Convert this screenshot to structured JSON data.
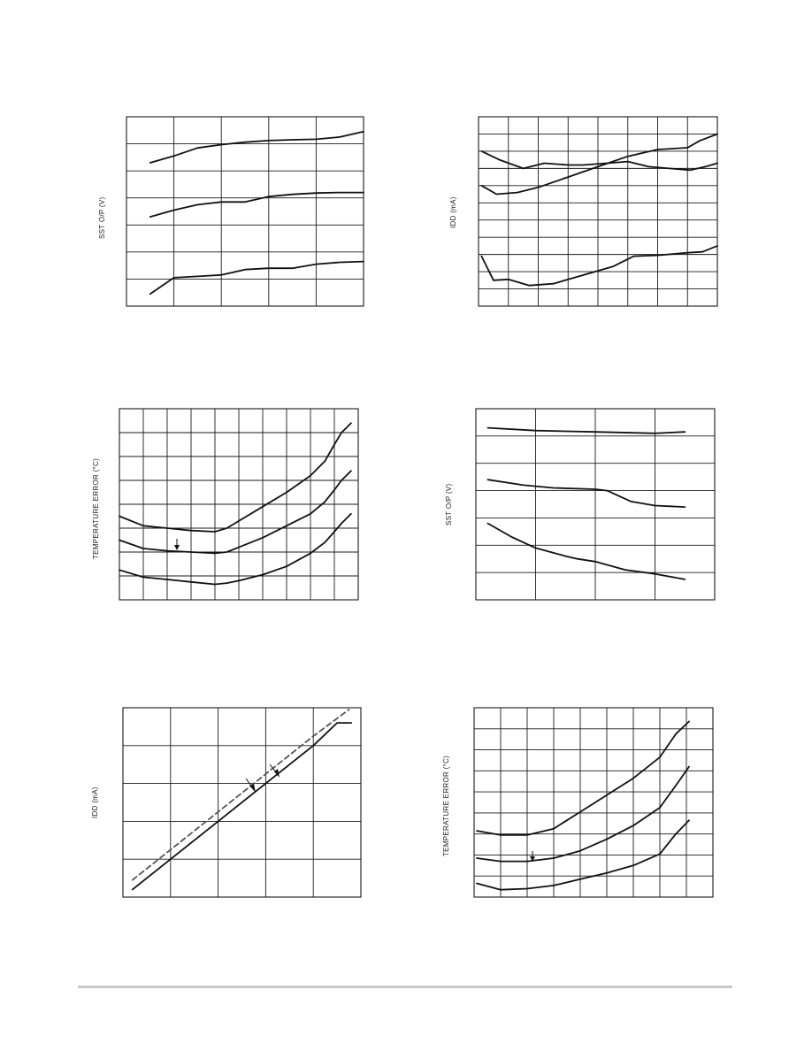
{
  "colors": {
    "ink": "#1a1a1a",
    "dashed_series": "#555555",
    "footer_rule": "#c8c8c8"
  },
  "chart_data": [
    {
      "id": "chart1",
      "type": "line",
      "ylabel": "SST O/P (V)",
      "grid": {
        "cols": 5,
        "rows": 7
      },
      "xlim": [
        0,
        5
      ],
      "ylim": [
        0,
        7
      ],
      "series": [
        {
          "x": [
            0.5,
            1,
            1.5,
            2,
            2.5,
            3,
            3.5,
            4,
            4.5,
            5
          ],
          "y": [
            5.3,
            5.55,
            5.85,
            5.97,
            6.06,
            6.12,
            6.15,
            6.17,
            6.25,
            6.45
          ],
          "style": "solid"
        },
        {
          "x": [
            0.5,
            1,
            1.5,
            2,
            2.5,
            3,
            3.5,
            4,
            4.5,
            5
          ],
          "y": [
            3.3,
            3.55,
            3.75,
            3.85,
            3.85,
            4.05,
            4.13,
            4.18,
            4.2,
            4.2
          ],
          "style": "solid"
        },
        {
          "x": [
            0.5,
            1,
            1.5,
            2,
            2.5,
            3,
            3.5,
            4,
            4.5,
            5
          ],
          "y": [
            0.45,
            1.05,
            1.1,
            1.15,
            1.35,
            1.4,
            1.4,
            1.55,
            1.62,
            1.65
          ],
          "style": "solid"
        }
      ]
    },
    {
      "id": "chart2",
      "type": "line",
      "ylabel": "IDD (mA)",
      "grid": {
        "cols": 8,
        "rows": 11
      },
      "xlim": [
        0,
        8
      ],
      "ylim": [
        0,
        11
      ],
      "series": [
        {
          "x": [
            0.1,
            0.7,
            1.5,
            2.2,
            3,
            3.5,
            4.3,
            5,
            5.7,
            6.4,
            7.1,
            7.6,
            8
          ],
          "y": [
            9,
            8.5,
            8.0,
            8.3,
            8.2,
            8.2,
            8.3,
            8.4,
            8.1,
            8.0,
            7.9,
            8.1,
            8.3
          ],
          "style": "solid"
        },
        {
          "x": [
            0.1,
            0.6,
            1.3,
            2.0,
            3.0,
            4.0,
            5.0,
            6.0,
            7.0,
            7.4,
            8.0
          ],
          "y": [
            7.0,
            6.5,
            6.6,
            6.9,
            7.5,
            8.1,
            8.7,
            9.1,
            9.2,
            9.6,
            10.0
          ],
          "style": "solid"
        },
        {
          "x": [
            0.1,
            0.5,
            1.0,
            1.7,
            2.5,
            3.5,
            4.5,
            5.2,
            6.0,
            7.0,
            7.5,
            8.0
          ],
          "y": [
            2.9,
            1.5,
            1.55,
            1.2,
            1.3,
            1.8,
            2.3,
            2.9,
            2.95,
            3.1,
            3.15,
            3.5
          ],
          "style": "solid"
        }
      ]
    },
    {
      "id": "chart3",
      "type": "line",
      "ylabel": "TEMPERATURE ERROR (°C)",
      "grid": {
        "cols": 10,
        "rows": 8
      },
      "xlim": [
        0,
        10
      ],
      "ylim": [
        0,
        8
      ],
      "series": [
        {
          "x": [
            0,
            1,
            2,
            3,
            4,
            4.5,
            5,
            6,
            7,
            8,
            8.6,
            9,
            9.3,
            9.7
          ],
          "y": [
            3.5,
            3.1,
            3.0,
            2.9,
            2.85,
            3.0,
            3.3,
            3.9,
            4.5,
            5.2,
            5.8,
            6.5,
            7.0,
            7.4
          ],
          "style": "solid"
        },
        {
          "x": [
            0,
            1,
            2,
            3,
            4,
            4.5,
            5,
            6,
            7,
            8,
            8.6,
            9,
            9.3,
            9.7
          ],
          "y": [
            2.5,
            2.15,
            2.05,
            2.0,
            1.95,
            2.0,
            2.2,
            2.6,
            3.1,
            3.6,
            4.1,
            4.6,
            5.0,
            5.4
          ],
          "style": "solid"
        },
        {
          "x": [
            0,
            1,
            2,
            3,
            4,
            4.5,
            5,
            6,
            7,
            8,
            8.6,
            9,
            9.3,
            9.7
          ],
          "y": [
            1.25,
            0.95,
            0.85,
            0.75,
            0.65,
            0.7,
            0.8,
            1.05,
            1.4,
            1.95,
            2.4,
            2.85,
            3.2,
            3.6
          ],
          "style": "solid"
        }
      ]
    },
    {
      "id": "chart4",
      "type": "line",
      "ylabel": "SST O/P (V)",
      "grid": {
        "cols": 4,
        "rows": 7
      },
      "xlim": [
        0,
        4
      ],
      "ylim": [
        0,
        7
      ],
      "series": [
        {
          "x": [
            0.2,
            1,
            2,
            3,
            3.5
          ],
          "y": [
            6.3,
            6.2,
            6.15,
            6.1,
            6.15
          ],
          "style": "solid"
        },
        {
          "x": [
            0.2,
            0.8,
            1.3,
            2.0,
            2.2,
            2.6,
            3.0,
            3.5
          ],
          "y": [
            4.4,
            4.2,
            4.1,
            4.05,
            4.0,
            3.6,
            3.45,
            3.4
          ],
          "style": "solid"
        },
        {
          "x": [
            0.2,
            0.6,
            1.0,
            1.5,
            1.7,
            2.0,
            2.5,
            3.0,
            3.5
          ],
          "y": [
            2.8,
            2.3,
            1.9,
            1.6,
            1.5,
            1.4,
            1.1,
            0.95,
            0.75
          ],
          "style": "solid"
        }
      ]
    },
    {
      "id": "chart5",
      "type": "line",
      "ylabel": "IDD (mA)",
      "grid": {
        "cols": 5,
        "rows": 5
      },
      "xlim": [
        0,
        5
      ],
      "ylim": [
        0,
        5
      ],
      "series": [
        {
          "x": [
            0.2,
            1,
            2,
            3,
            4,
            4.5,
            4.8
          ],
          "y": [
            0.2,
            1.0,
            2.0,
            3.0,
            4.0,
            4.6,
            4.6
          ],
          "style": "solid"
        },
        {
          "x": [
            0.2,
            1,
            2,
            3,
            4,
            4.75
          ],
          "y": [
            0.45,
            1.25,
            2.25,
            3.25,
            4.25,
            4.95
          ],
          "style": "dashed"
        }
      ],
      "annotations": [
        {
          "kind": "arrow"
        },
        {
          "kind": "arrow"
        }
      ]
    },
    {
      "id": "chart6",
      "type": "line",
      "ylabel": "TEMPERATURE ERROR (°C)",
      "grid": {
        "cols": 9,
        "rows": 9
      },
      "xlim": [
        0,
        9
      ],
      "ylim": [
        0,
        9
      ],
      "series": [
        {
          "x": [
            0.1,
            1,
            2,
            3,
            4,
            5,
            6,
            7,
            7.6,
            8.1
          ],
          "y": [
            3.15,
            2.95,
            2.95,
            3.25,
            4.05,
            4.85,
            5.65,
            6.65,
            7.75,
            8.35
          ],
          "style": "solid"
        },
        {
          "x": [
            0.1,
            1,
            2,
            3,
            4,
            5,
            6,
            7,
            7.6,
            8.1
          ],
          "y": [
            1.85,
            1.7,
            1.7,
            1.85,
            2.2,
            2.75,
            3.4,
            4.25,
            5.3,
            6.2
          ],
          "style": "solid"
        },
        {
          "x": [
            0.1,
            1,
            2,
            3,
            4,
            5,
            6,
            7,
            7.6,
            8.1
          ],
          "y": [
            0.65,
            0.35,
            0.4,
            0.55,
            0.85,
            1.15,
            1.5,
            2.05,
            3.0,
            3.65
          ],
          "style": "solid"
        }
      ],
      "annotations": [
        {
          "kind": "arrow"
        }
      ]
    }
  ]
}
